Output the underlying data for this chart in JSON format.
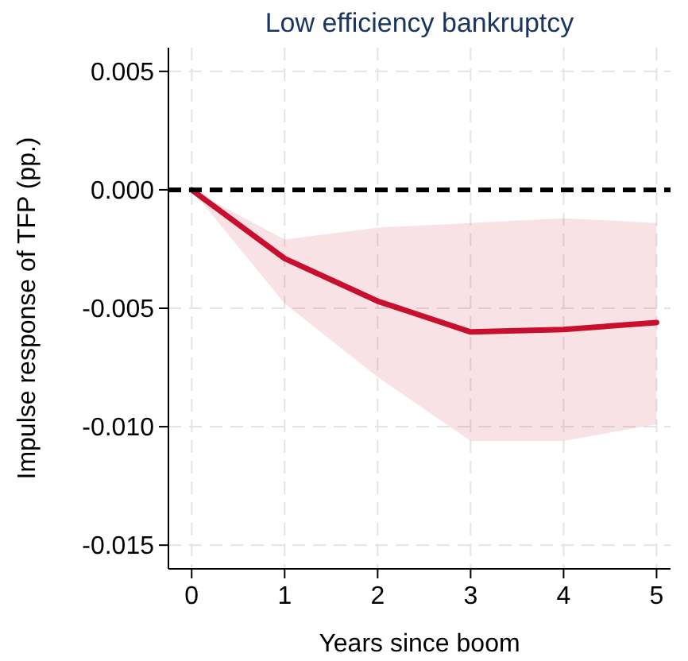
{
  "chart_data": {
    "type": "line",
    "title": "Low efficiency bankruptcy",
    "xlabel": "Years since boom",
    "ylabel": "Impulse response of TFP (pp.)",
    "x": [
      0,
      1,
      2,
      3,
      4,
      5
    ],
    "series": [
      {
        "color": "#c8102e",
        "values": [
          0,
          -0.0029,
          -0.0047,
          -0.006,
          -0.0059,
          -0.0056
        ],
        "lower": [
          0,
          -0.0048,
          -0.0079,
          -0.0106,
          -0.0106,
          -0.0099
        ],
        "upper": [
          0,
          -0.0021,
          -0.0016,
          -0.0014,
          -0.0012,
          -0.0014
        ]
      }
    ],
    "xlim": [
      -0.25,
      5.15
    ],
    "xticks": [
      0,
      1,
      2,
      3,
      4,
      5
    ],
    "ylim": [
      -0.016,
      0.006
    ],
    "yticks": [
      {
        "value": 0.005,
        "label": "0.005"
      },
      {
        "value": 0,
        "label": "0.000"
      },
      {
        "value": -0.005,
        "label": "-0.005"
      },
      {
        "value": -0.01,
        "label": "-0.010"
      },
      {
        "value": -0.015,
        "label": "-0.015"
      }
    ],
    "grid": true,
    "marker": "none",
    "line_style": "solid",
    "ref_lines": [
      {
        "axis": "y",
        "value": 0,
        "color": "#000000",
        "line_style": "dashed"
      }
    ]
  }
}
